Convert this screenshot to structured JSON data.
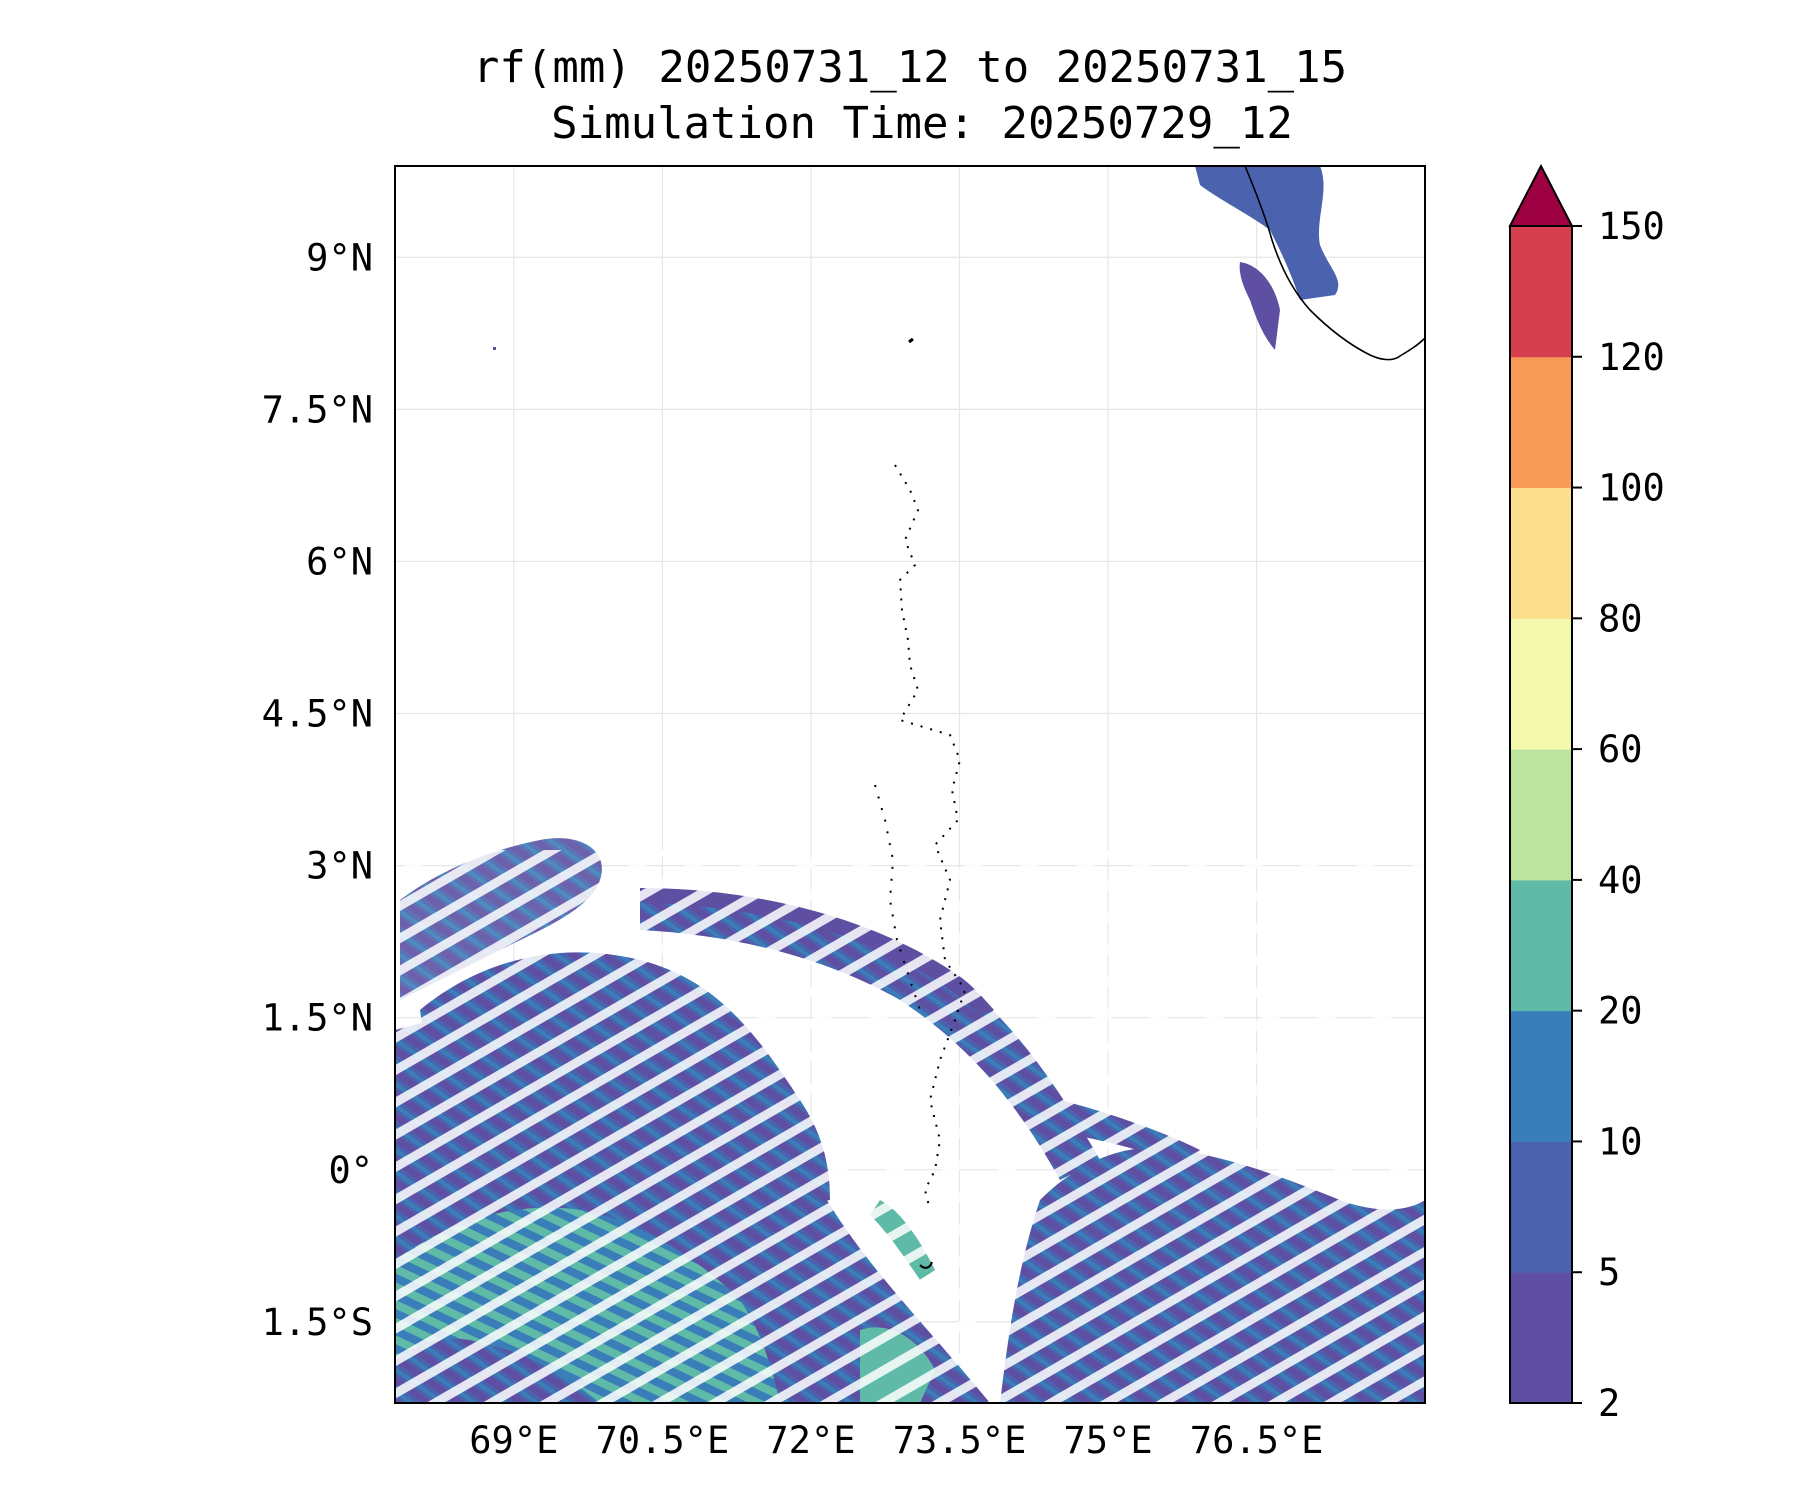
{
  "map": {
    "title_line1": "rf(mm) 20250731_12 to 20250731_15",
    "title_line2": "Simulation Time: 20250729_12",
    "lon_range": [
      67.8,
      78.2
    ],
    "lat_range": [
      -2.3,
      9.9
    ],
    "lon_ticks": [
      {
        "value": 69.0,
        "label": "69°E"
      },
      {
        "value": 70.5,
        "label": "70.5°E"
      },
      {
        "value": 72.0,
        "label": "72°E"
      },
      {
        "value": 73.5,
        "label": "73.5°E"
      },
      {
        "value": 75.0,
        "label": "75°E"
      },
      {
        "value": 76.5,
        "label": "76.5°E"
      }
    ],
    "lat_ticks": [
      {
        "value": 9.0,
        "label": "9°N"
      },
      {
        "value": 7.5,
        "label": "7.5°N"
      },
      {
        "value": 6.0,
        "label": "6°N"
      },
      {
        "value": 4.5,
        "label": "4.5°N"
      },
      {
        "value": 3.0,
        "label": "3°N"
      },
      {
        "value": 1.5,
        "label": "1.5°N"
      },
      {
        "value": 0.0,
        "label": "0°"
      },
      {
        "value": -1.5,
        "label": "1.5°S"
      }
    ],
    "gridlines": true
  },
  "colorbar": {
    "levels": [
      "2",
      "5",
      "10",
      "20",
      "40",
      "60",
      "80",
      "100",
      "120",
      "150"
    ],
    "colors": [
      "#5e4fa2",
      "#4b63ae",
      "#3a7eb9",
      "#5fbaa8",
      "#bde3a0",
      "#f2f9ad",
      "#fbdf8c",
      "#f89b58",
      "#d6404e",
      "#9e0142"
    ],
    "extend": "max"
  }
}
